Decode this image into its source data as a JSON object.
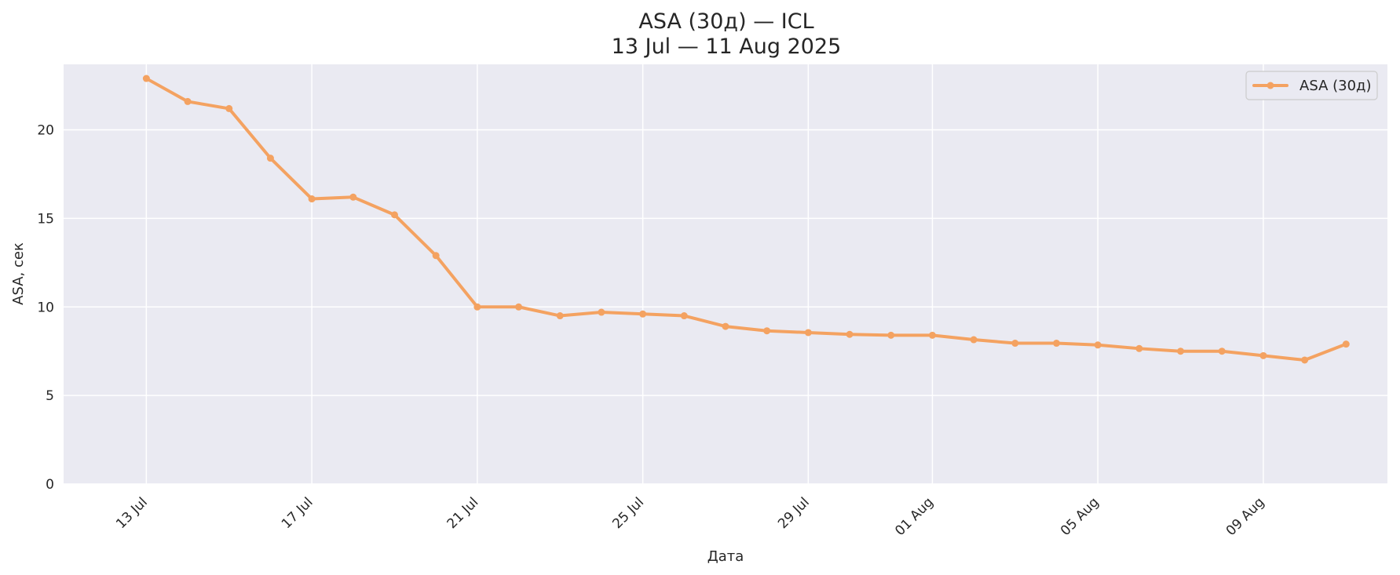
{
  "chart_data": {
    "type": "line",
    "title": "ASA (30д) — ICL",
    "subtitle": "13 Jul — 11 Aug 2025",
    "xlabel": "Дата",
    "ylabel": "ASA, сек",
    "ylim": [
      0,
      23.7
    ],
    "y_ticks": [
      0,
      5,
      10,
      15,
      20
    ],
    "x_ticks": [
      {
        "date": "2025-07-13",
        "label": "13 Jul"
      },
      {
        "date": "2025-07-17",
        "label": "17 Jul"
      },
      {
        "date": "2025-07-21",
        "label": "21 Jul"
      },
      {
        "date": "2025-07-25",
        "label": "25 Jul"
      },
      {
        "date": "2025-07-29",
        "label": "29 Jul"
      },
      {
        "date": "2025-08-01",
        "label": "01 Aug"
      },
      {
        "date": "2025-08-05",
        "label": "05 Aug"
      },
      {
        "date": "2025-08-09",
        "label": "09 Aug"
      }
    ],
    "xlim": [
      "2025-07-11",
      "2025-08-12"
    ],
    "grid": true,
    "legend_position": "top-right",
    "background": "#eaeaf2",
    "series": [
      {
        "name": "ASA (30д)",
        "color": "#f4a261",
        "marker": "circle",
        "points": [
          {
            "x": "2025-07-13",
            "y": 22.9
          },
          {
            "x": "2025-07-14",
            "y": 21.6
          },
          {
            "x": "2025-07-15",
            "y": 21.2
          },
          {
            "x": "2025-07-16",
            "y": 18.4
          },
          {
            "x": "2025-07-17",
            "y": 16.1
          },
          {
            "x": "2025-07-18",
            "y": 16.2
          },
          {
            "x": "2025-07-19",
            "y": 15.2
          },
          {
            "x": "2025-07-20",
            "y": 12.9
          },
          {
            "x": "2025-07-21",
            "y": 10.0
          },
          {
            "x": "2025-07-22",
            "y": 10.0
          },
          {
            "x": "2025-07-23",
            "y": 9.5
          },
          {
            "x": "2025-07-24",
            "y": 9.7
          },
          {
            "x": "2025-07-25",
            "y": 9.6
          },
          {
            "x": "2025-07-26",
            "y": 9.5
          },
          {
            "x": "2025-07-27",
            "y": 8.9
          },
          {
            "x": "2025-07-28",
            "y": 8.65
          },
          {
            "x": "2025-07-29",
            "y": 8.55
          },
          {
            "x": "2025-07-30",
            "y": 8.45
          },
          {
            "x": "2025-07-31",
            "y": 8.4
          },
          {
            "x": "2025-08-01",
            "y": 8.4
          },
          {
            "x": "2025-08-02",
            "y": 8.15
          },
          {
            "x": "2025-08-03",
            "y": 7.95
          },
          {
            "x": "2025-08-04",
            "y": 7.95
          },
          {
            "x": "2025-08-05",
            "y": 7.85
          },
          {
            "x": "2025-08-06",
            "y": 7.65
          },
          {
            "x": "2025-08-07",
            "y": 7.5
          },
          {
            "x": "2025-08-08",
            "y": 7.5
          },
          {
            "x": "2025-08-09",
            "y": 7.25
          },
          {
            "x": "2025-08-10",
            "y": 7.0
          },
          {
            "x": "2025-08-11",
            "y": 7.9
          }
        ]
      }
    ]
  }
}
